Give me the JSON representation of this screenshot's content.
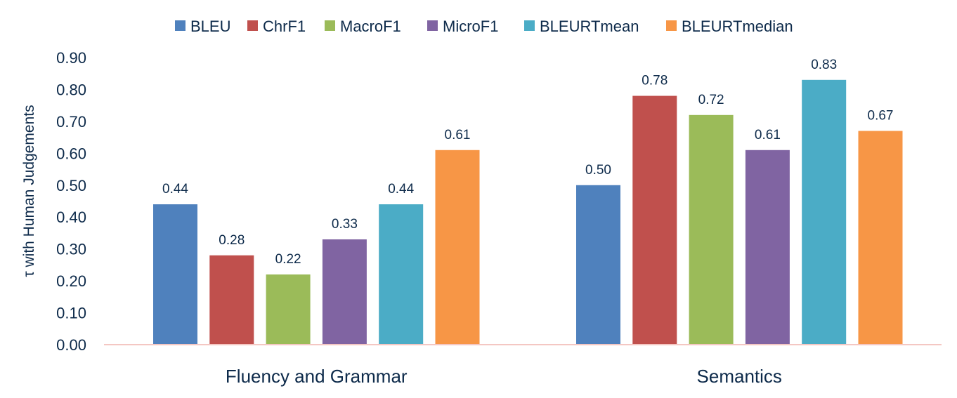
{
  "chart_data": {
    "type": "bar",
    "title": "",
    "xlabel": "",
    "ylabel": "τ with Human Judgements",
    "categories": [
      "Fluency and Grammar",
      "Semantics"
    ],
    "series": [
      {
        "name": "BLEU",
        "color": "#4f81bd",
        "values": [
          0.44,
          0.5
        ],
        "labels": [
          "0.44",
          "0.50"
        ]
      },
      {
        "name": "ChrF1",
        "color": "#c0504d",
        "values": [
          0.28,
          0.78
        ],
        "labels": [
          "0.28",
          "0.78"
        ]
      },
      {
        "name": "MacroF1",
        "color": "#9bbb59",
        "values": [
          0.22,
          0.72
        ],
        "labels": [
          "0.22",
          "0.72"
        ]
      },
      {
        "name": "MicroF1",
        "color": "#8064a2",
        "values": [
          0.33,
          0.61
        ],
        "labels": [
          "0.33",
          "0.61"
        ]
      },
      {
        "name": "BLEURTmean",
        "color": "#4bacc6",
        "values": [
          0.44,
          0.83
        ],
        "labels": [
          "0.44",
          "0.83"
        ]
      },
      {
        "name": "BLEURTmedian",
        "color": "#f79646",
        "values": [
          0.61,
          0.67
        ],
        "labels": [
          "0.61",
          "0.67"
        ]
      }
    ],
    "ylim": [
      0,
      0.9
    ],
    "yticks": [
      "0.00",
      "0.10",
      "0.20",
      "0.30",
      "0.40",
      "0.50",
      "0.60",
      "0.70",
      "0.80",
      "0.90"
    ],
    "grid": false,
    "legend_position": "top-center",
    "axis_line_color": "#f4c7c3"
  }
}
